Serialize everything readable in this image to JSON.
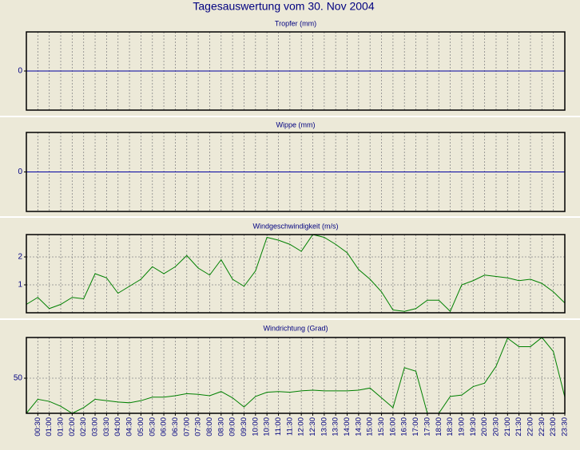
{
  "title": "Tagesauswertung vom 30. Nov 2004",
  "chart_data": [
    {
      "type": "line",
      "title": "Tropfer (mm)",
      "color": "#0000a0",
      "grid": true,
      "ylim": [
        -1,
        1
      ],
      "yticks": [
        0
      ],
      "values": [
        0,
        0,
        0,
        0,
        0,
        0,
        0,
        0,
        0,
        0,
        0,
        0,
        0,
        0,
        0,
        0,
        0,
        0,
        0,
        0,
        0,
        0,
        0,
        0,
        0,
        0,
        0,
        0,
        0,
        0,
        0,
        0,
        0,
        0,
        0,
        0,
        0,
        0,
        0,
        0,
        0,
        0,
        0,
        0,
        0,
        0,
        0,
        0
      ]
    },
    {
      "type": "line",
      "title": "Wippe (mm)",
      "color": "#0000a0",
      "grid": true,
      "ylim": [
        -1,
        1
      ],
      "yticks": [
        0
      ],
      "values": [
        0,
        0,
        0,
        0,
        0,
        0,
        0,
        0,
        0,
        0,
        0,
        0,
        0,
        0,
        0,
        0,
        0,
        0,
        0,
        0,
        0,
        0,
        0,
        0,
        0,
        0,
        0,
        0,
        0,
        0,
        0,
        0,
        0,
        0,
        0,
        0,
        0,
        0,
        0,
        0,
        0,
        0,
        0,
        0,
        0,
        0,
        0,
        0
      ]
    },
    {
      "type": "line",
      "title": "Windgeschwindigkeit (m/s)",
      "color": "#008000",
      "grid": true,
      "ylim": [
        0,
        2.8
      ],
      "yticks": [
        1,
        2
      ],
      "values": [
        0.3,
        0.55,
        0.15,
        0.3,
        0.55,
        0.5,
        1.4,
        1.25,
        0.7,
        0.95,
        1.2,
        1.65,
        1.4,
        1.65,
        2.05,
        1.6,
        1.35,
        1.9,
        1.2,
        0.95,
        1.5,
        2.7,
        2.6,
        2.45,
        2.2,
        2.8,
        2.7,
        2.45,
        2.15,
        1.55,
        1.2,
        0.75,
        0.1,
        0.05,
        0.15,
        0.45,
        0.45,
        0.05,
        1.0,
        1.15,
        1.35,
        1.3,
        1.25,
        1.15,
        1.2,
        1.05,
        0.75,
        0.35
      ]
    },
    {
      "type": "line",
      "title": "Windrichtung (Grad)",
      "color": "#008000",
      "grid": true,
      "ylim": [
        0,
        108
      ],
      "yticks": [
        50
      ],
      "categories": [
        null,
        "00:30",
        "01:00",
        "01:30",
        "02:00",
        "02:30",
        "03:00",
        "03:30",
        "04:00",
        "04:30",
        "05:00",
        "05:30",
        "06:00",
        "06:30",
        "07:00",
        "07:30",
        "08:00",
        "08:30",
        "09:00",
        "09:30",
        "10:00",
        "10:30",
        "11:00",
        "11:30",
        "12:00",
        "12:30",
        "13:00",
        "13:30",
        "14:00",
        "14:30",
        "15:00",
        "15:30",
        "16:00",
        "16:30",
        "17:00",
        "17:30",
        "18:00",
        "18:30",
        "19:00",
        "19:30",
        "20:00",
        "20:30",
        "21:00",
        "21:30",
        "22:00",
        "22:30",
        "23:00",
        "23:30"
      ],
      "values": [
        0,
        20,
        17,
        10,
        0,
        8,
        20,
        18,
        16,
        15,
        18,
        23,
        23,
        25,
        28,
        27,
        25,
        31,
        22,
        9,
        24,
        30,
        31,
        30,
        32,
        33,
        32,
        32,
        32,
        33,
        36,
        22,
        8,
        65,
        60,
        0,
        0,
        24,
        26,
        38,
        43,
        67,
        107,
        95,
        95,
        108,
        88,
        23
      ]
    }
  ]
}
